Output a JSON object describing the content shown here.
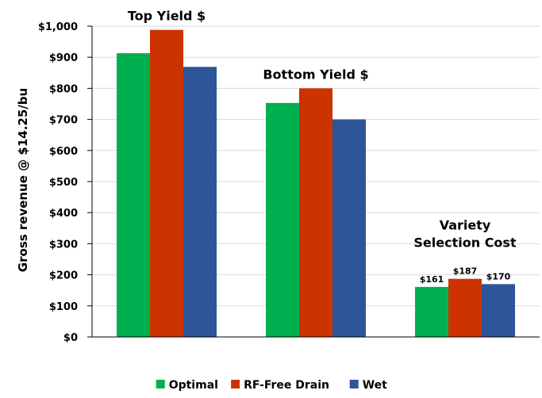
{
  "chart_data": {
    "type": "bar",
    "title": "",
    "xlabel": "",
    "ylabel": "Gross revenue @ $14.25/bu",
    "ylim": [
      0,
      1000
    ],
    "ytick_step": 100,
    "ytick_labels": [
      "$0",
      "$100",
      "$200",
      "$300",
      "$400",
      "$500",
      "$600",
      "$700",
      "$800",
      "$900",
      "$1,000"
    ],
    "grid": true,
    "legend_position": "bottom",
    "groups": [
      {
        "label_lines": [
          "Top Yield $"
        ]
      },
      {
        "label_lines": [
          "Bottom Yield $"
        ]
      },
      {
        "label_lines": [
          "Variety",
          "Selection Cost"
        ]
      }
    ],
    "series": [
      {
        "name": "Optimal",
        "color": "#00b050",
        "values": [
          913,
          753,
          161
        ],
        "data_labels": [
          "",
          "",
          "$161"
        ]
      },
      {
        "name": "RF-Free Drain",
        "color": "#cc3300",
        "values": [
          988,
          800,
          187
        ],
        "data_labels": [
          "",
          "",
          "$187"
        ]
      },
      {
        "name": "Wet",
        "color": "#2e5597",
        "values": [
          869,
          700,
          170
        ],
        "data_labels": [
          "",
          "",
          "$170"
        ]
      }
    ]
  }
}
